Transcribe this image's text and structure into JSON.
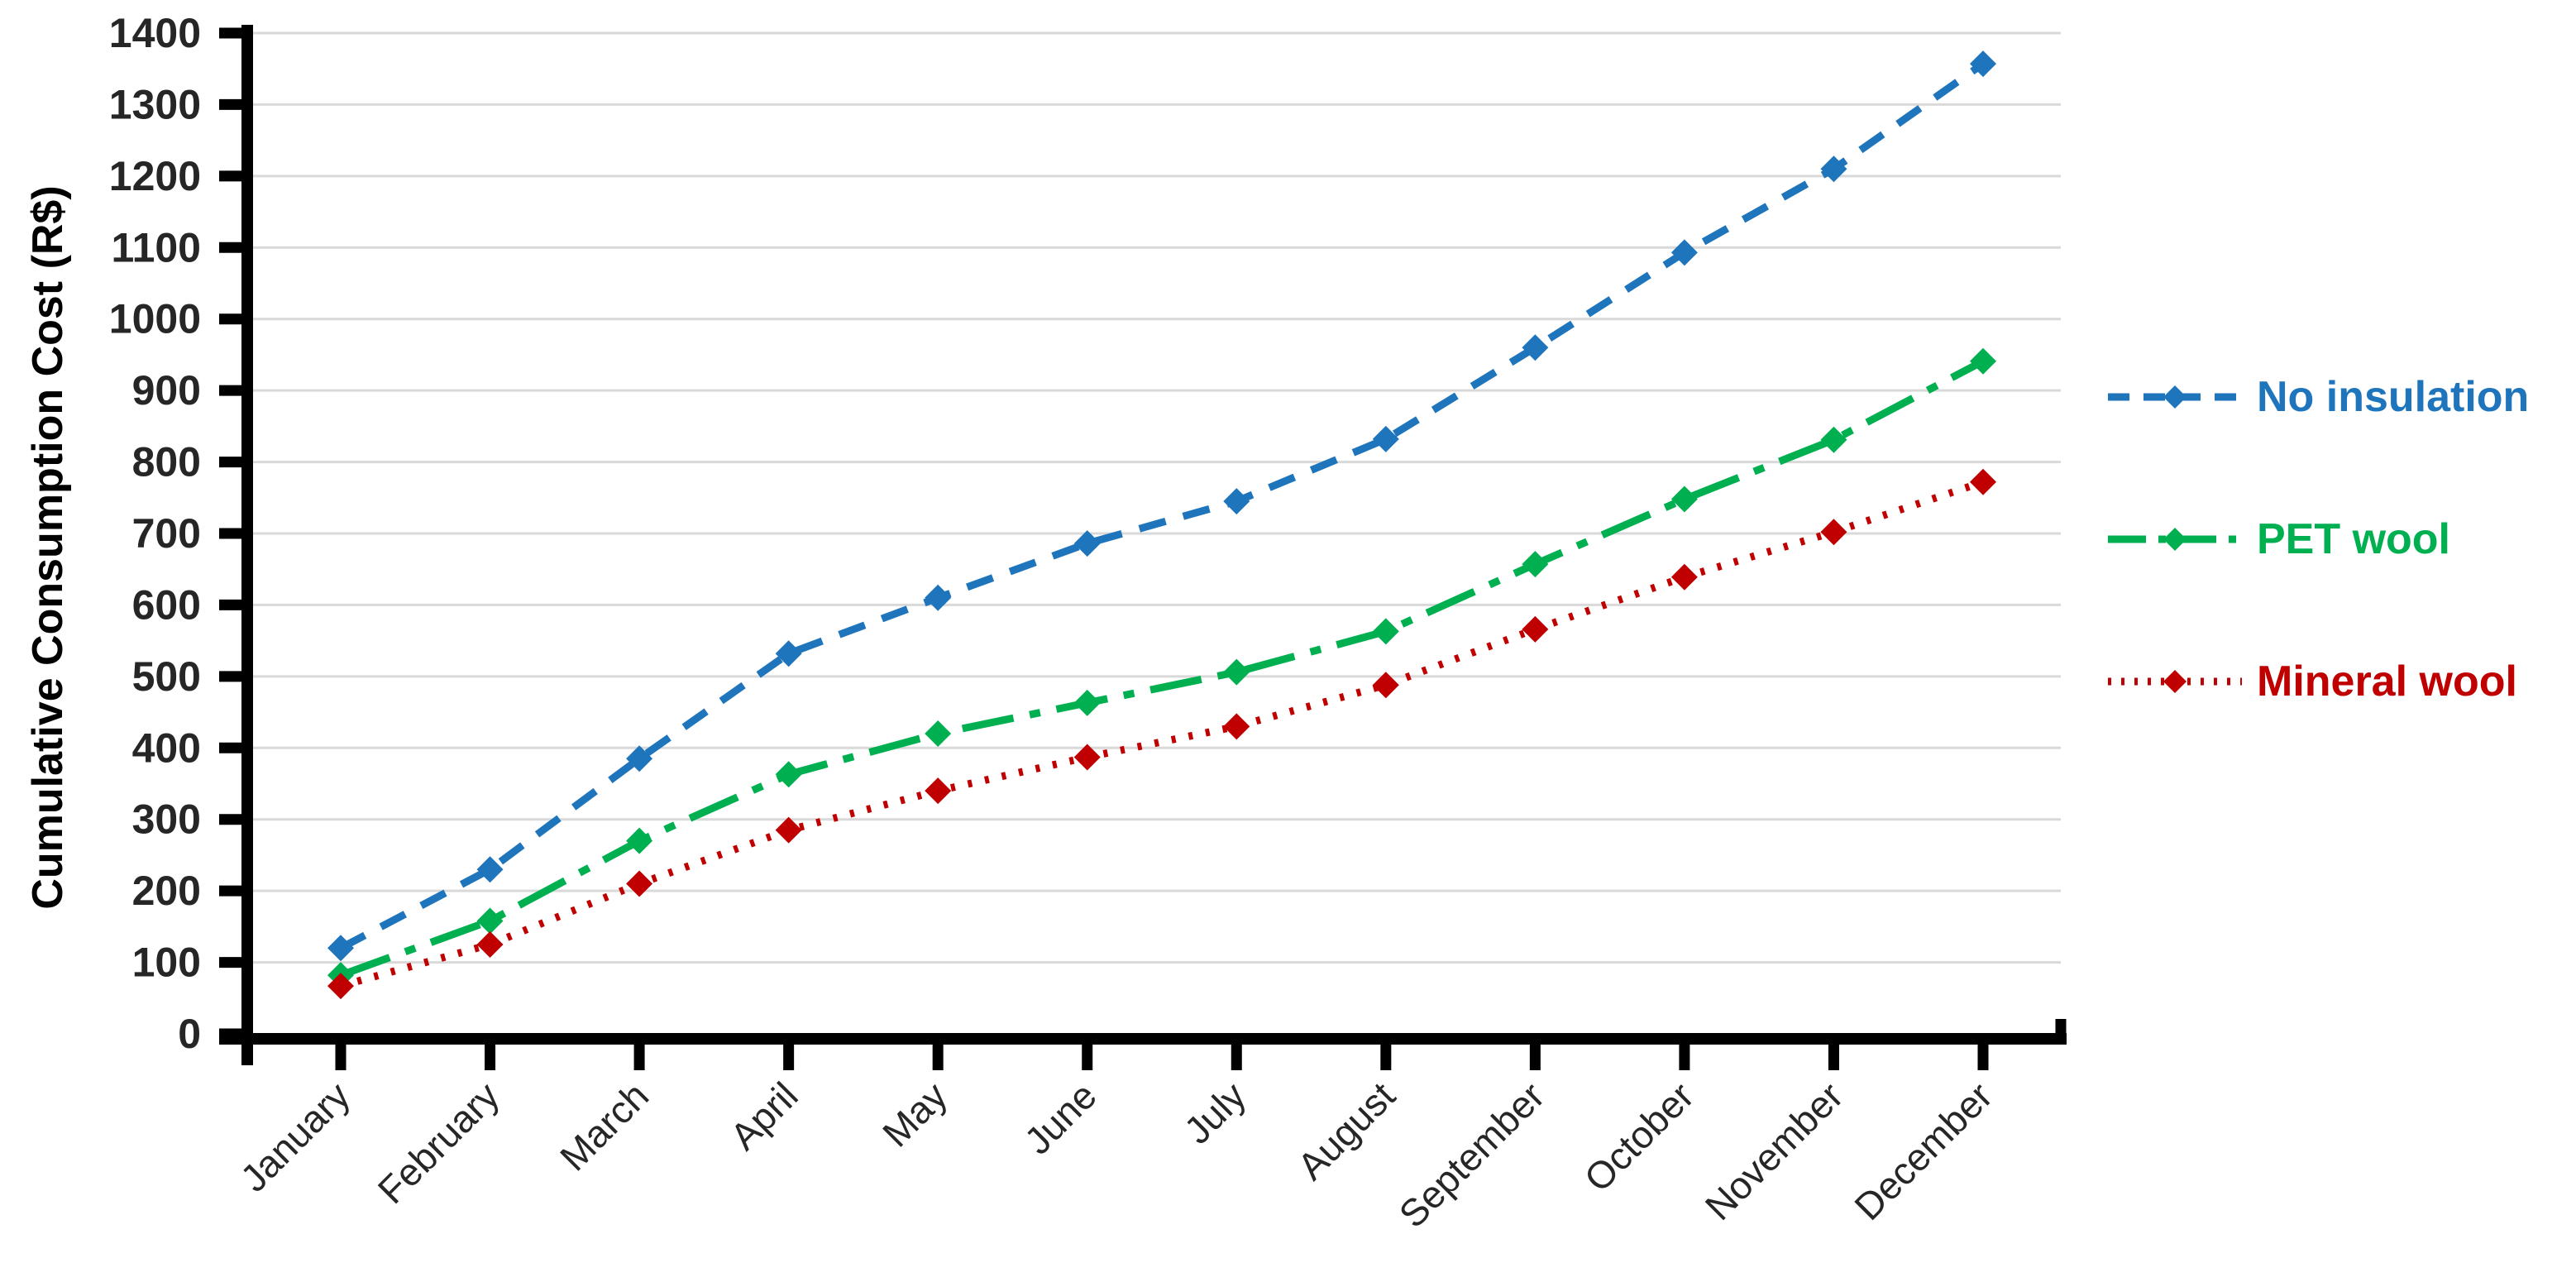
{
  "chart_data": {
    "type": "line",
    "title": "",
    "xlabel": "",
    "ylabel": "Cumulative Consumption Cost (R$)",
    "ylim": [
      0,
      1400
    ],
    "ytick_step": 100,
    "yticks": [
      0,
      100,
      200,
      300,
      400,
      500,
      600,
      700,
      800,
      900,
      1000,
      1100,
      1200,
      1300,
      1400
    ],
    "grid": "horizontal",
    "legend_position": "right",
    "categories": [
      "January",
      "February",
      "March",
      "April",
      "May",
      "June",
      "July",
      "August",
      "September",
      "October",
      "November",
      "December"
    ],
    "series": [
      {
        "name": "No insulation",
        "color": "#1F75BC",
        "line_style": "dashed",
        "marker": "diamond",
        "values": [
          120,
          230,
          385,
          532,
          610,
          686,
          745,
          832,
          960,
          1093,
          1210,
          1357
        ]
      },
      {
        "name": "PET wool",
        "color": "#00B050",
        "line_style": "dash-dot",
        "marker": "diamond",
        "values": [
          82,
          158,
          270,
          363,
          420,
          463,
          506,
          563,
          657,
          748,
          831,
          941
        ]
      },
      {
        "name": "Mineral wool",
        "color": "#C00000",
        "line_style": "dotted",
        "marker": "diamond",
        "values": [
          67,
          125,
          210,
          285,
          340,
          387,
          430,
          488,
          566,
          639,
          702,
          772
        ]
      }
    ],
    "colors": {
      "grid": "#D9D9D9",
      "axis": "#000000",
      "tick_labels": "#262626"
    }
  }
}
